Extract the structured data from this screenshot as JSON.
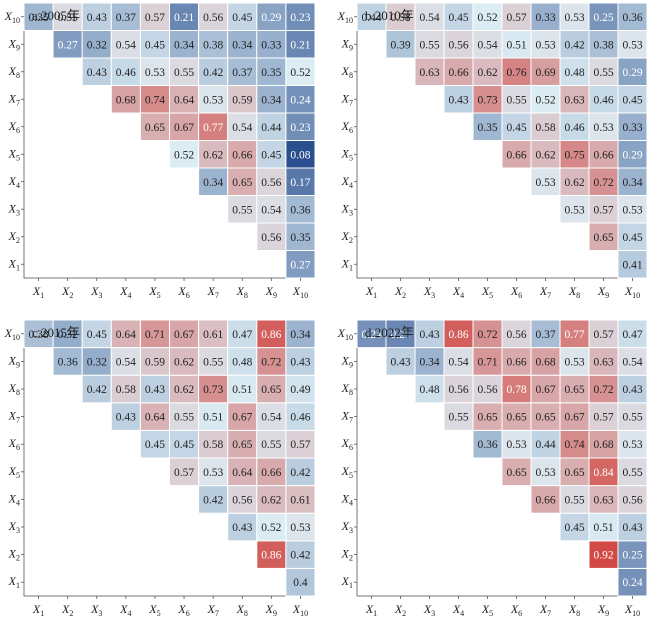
{
  "figure": {
    "n": 10,
    "row_labels": [
      "X1",
      "X2",
      "X3",
      "X4",
      "X5",
      "X6",
      "X7",
      "X8",
      "X9",
      "X10"
    ],
    "col_labels": [
      "X1",
      "X2",
      "X3",
      "X4",
      "X5",
      "X6",
      "X7",
      "X8",
      "X9",
      "X10"
    ],
    "label_prefix": "X"
  },
  "colors": {
    "low": "#2a4f8f",
    "mid": "#dcecf3",
    "high": "#d24a46",
    "grid_line": "#ffffff",
    "text_dark": "#222222",
    "text_light": "#ffffff"
  },
  "chart_data": [
    {
      "type": "heatmap",
      "title": "a.2005年",
      "cells": [
        [
          0.27
        ],
        [
          0.56,
          0.35
        ],
        [
          0.55,
          0.54,
          0.36
        ],
        [
          0.34,
          0.65,
          0.56,
          0.17
        ],
        [
          0.52,
          0.62,
          0.66,
          0.45,
          0.08
        ],
        [
          0.65,
          0.67,
          0.77,
          0.54,
          0.44,
          0.23
        ],
        [
          0.68,
          0.74,
          0.64,
          0.53,
          0.59,
          0.34,
          0.24
        ],
        [
          0.43,
          0.46,
          0.53,
          0.55,
          0.42,
          0.37,
          0.35,
          0.52
        ],
        [
          0.27,
          0.32,
          0.54,
          0.45,
          0.34,
          0.38,
          0.34,
          0.33,
          0.21
        ],
        [
          0.35,
          0.55,
          0.43,
          0.37,
          0.57,
          0.21,
          0.56,
          0.45,
          0.29,
          0.23
        ]
      ]
    },
    {
      "type": "heatmap",
      "title": "b.2010年",
      "cells": [
        [
          0.41
        ],
        [
          0.65,
          0.45
        ],
        [
          0.53,
          0.57,
          0.53
        ],
        [
          0.53,
          0.62,
          0.72,
          0.34
        ],
        [
          0.66,
          0.62,
          0.75,
          0.66,
          0.29
        ],
        [
          0.35,
          0.45,
          0.58,
          0.46,
          0.53,
          0.33
        ],
        [
          0.43,
          0.73,
          0.55,
          0.52,
          0.63,
          0.46,
          0.45
        ],
        [
          0.63,
          0.66,
          0.62,
          0.76,
          0.69,
          0.48,
          0.55,
          0.29
        ],
        [
          0.39,
          0.55,
          0.56,
          0.54,
          0.51,
          0.53,
          0.42,
          0.38,
          0.53
        ],
        [
          0.44,
          0.58,
          0.54,
          0.45,
          0.52,
          0.57,
          0.33,
          0.53,
          0.25,
          0.36
        ]
      ]
    },
    {
      "type": "heatmap",
      "title": "c.2015年",
      "cells": [
        [
          0.4
        ],
        [
          0.86,
          0.42
        ],
        [
          0.43,
          0.52,
          0.53
        ],
        [
          0.42,
          0.56,
          0.62,
          0.61
        ],
        [
          0.57,
          0.53,
          0.64,
          0.66,
          0.42
        ],
        [
          0.45,
          0.45,
          0.58,
          0.65,
          0.55,
          0.57
        ],
        [
          0.43,
          0.64,
          0.55,
          0.51,
          0.67,
          0.54,
          0.46
        ],
        [
          0.42,
          0.58,
          0.43,
          0.62,
          0.73,
          0.51,
          0.65,
          0.49
        ],
        [
          0.36,
          0.32,
          0.54,
          0.59,
          0.62,
          0.55,
          0.48,
          0.72,
          0.43
        ],
        [
          0.38,
          0.32,
          0.45,
          0.64,
          0.71,
          0.67,
          0.61,
          0.47,
          0.86,
          0.34
        ]
      ]
    },
    {
      "type": "heatmap",
      "title": "d.2022年",
      "cells": [
        [
          0.24
        ],
        [
          0.92,
          0.25
        ],
        [
          0.45,
          0.51,
          0.43
        ],
        [
          0.66,
          0.55,
          0.63,
          0.56
        ],
        [
          0.65,
          0.53,
          0.65,
          0.84,
          0.55
        ],
        [
          0.36,
          0.53,
          0.44,
          0.74,
          0.68,
          0.53
        ],
        [
          0.55,
          0.65,
          0.65,
          0.65,
          0.67,
          0.57,
          0.55
        ],
        [
          0.48,
          0.56,
          0.56,
          0.78,
          0.67,
          0.65,
          0.72,
          0.43
        ],
        [
          0.43,
          0.34,
          0.54,
          0.71,
          0.66,
          0.68,
          0.53,
          0.63,
          0.54
        ],
        [
          0.24,
          0.21,
          0.43,
          0.86,
          0.72,
          0.56,
          0.37,
          0.77,
          0.57,
          0.47
        ]
      ]
    }
  ]
}
